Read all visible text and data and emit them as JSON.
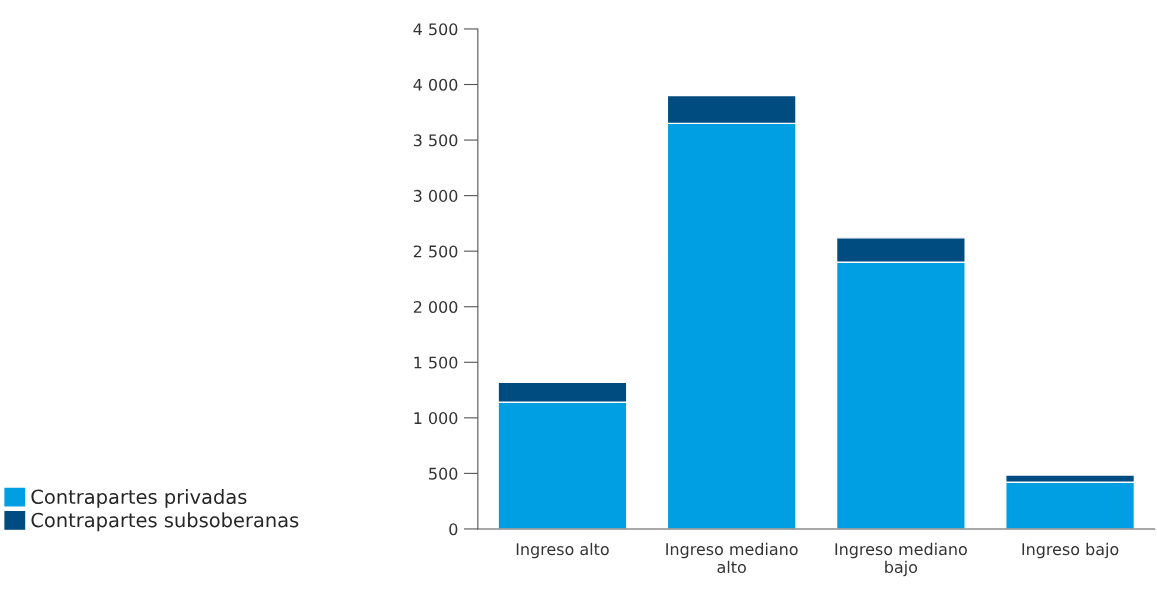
{
  "chart_data": {
    "type": "bar",
    "stacked": true,
    "categories": [
      "Ingreso alto",
      "Ingreso mediano\nalto",
      "Ingreso mediano\nbajo",
      "Ingreso bajo"
    ],
    "series": [
      {
        "name": "Contrapartes privadas",
        "color": "#009fe3",
        "values": [
          1140,
          3650,
          2400,
          420
        ]
      },
      {
        "name": "Contrapartes subsoberanas",
        "color": "#004b80",
        "values": [
          180,
          250,
          220,
          65
        ]
      }
    ],
    "ylim": [
      0,
      4500
    ],
    "yticks": [
      0,
      500,
      {
        "value": 1000,
        "label": "1 000"
      },
      {
        "value": 1500,
        "label": "1 500"
      },
      {
        "value": 2000,
        "label": "2 000"
      },
      {
        "value": 2500,
        "label": "2 500"
      },
      {
        "value": 3000,
        "label": "3 000"
      },
      {
        "value": 3500,
        "label": "3 500"
      },
      {
        "value": 4000,
        "label": "4 000"
      },
      {
        "value": 4500,
        "label": "4 500"
      }
    ],
    "grid": false,
    "legend": "bottom left"
  }
}
